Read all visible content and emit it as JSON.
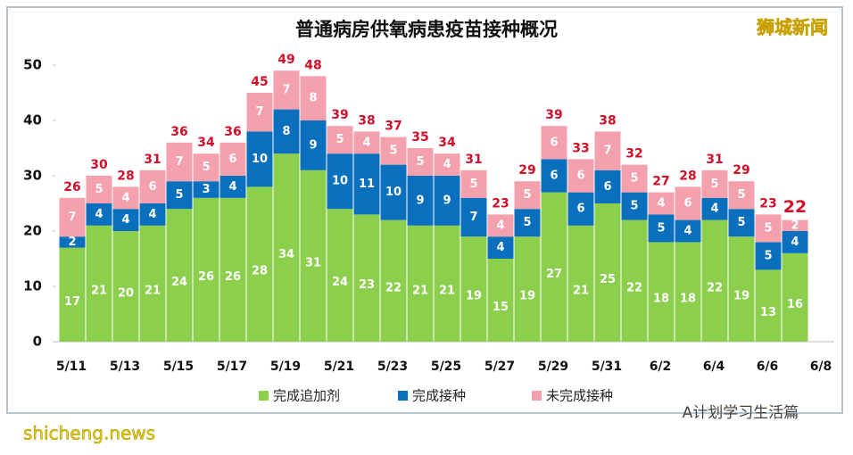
{
  "chart_data": {
    "type": "stacked_bar",
    "title": "普通病房供氧病患疫苗接种概况",
    "categories": [
      "5/11",
      null,
      "5/13",
      null,
      "5/15",
      null,
      "5/17",
      null,
      "5/19",
      null,
      "5/21",
      null,
      "5/23",
      null,
      "5/25",
      null,
      "5/27",
      null,
      "5/29",
      null,
      "5/31",
      null,
      "6/2",
      null,
      "6/4",
      null,
      "6/6",
      null
    ],
    "x_end_label": "6/8",
    "series": [
      {
        "name": "完成追加剂",
        "color": "#8ccf4d",
        "values": [
          17,
          21,
          20,
          21,
          24,
          26,
          26,
          28,
          34,
          31,
          24,
          23,
          22,
          21,
          21,
          19,
          15,
          19,
          27,
          21,
          25,
          22,
          18,
          18,
          22,
          19,
          13,
          16
        ]
      },
      {
        "name": "完成接种",
        "color": "#0a6fbd",
        "values": [
          2,
          4,
          4,
          4,
          5,
          3,
          4,
          10,
          8,
          9,
          10,
          11,
          10,
          9,
          9,
          7,
          4,
          5,
          6,
          6,
          6,
          5,
          5,
          4,
          4,
          5,
          5,
          4
        ]
      },
      {
        "name": "未完成接种",
        "color": "#f4a0ad",
        "values": [
          7,
          5,
          4,
          6,
          7,
          5,
          6,
          7,
          7,
          8,
          5,
          4,
          5,
          5,
          4,
          5,
          4,
          5,
          6,
          6,
          7,
          5,
          4,
          6,
          5,
          5,
          5,
          2
        ]
      }
    ],
    "totals": [
      26,
      30,
      28,
      31,
      36,
      34,
      36,
      45,
      49,
      48,
      39,
      38,
      37,
      35,
      34,
      31,
      23,
      29,
      39,
      33,
      38,
      32,
      27,
      28,
      31,
      29,
      23,
      22
    ],
    "ylim": [
      0,
      50
    ],
    "yticks": [
      0,
      10,
      20,
      30,
      40,
      50
    ],
    "grid": false,
    "watermark_top": "狮城新闻",
    "watermark_bottom": "A计划学习生活篇",
    "watermark_site": "shicheng.news"
  }
}
